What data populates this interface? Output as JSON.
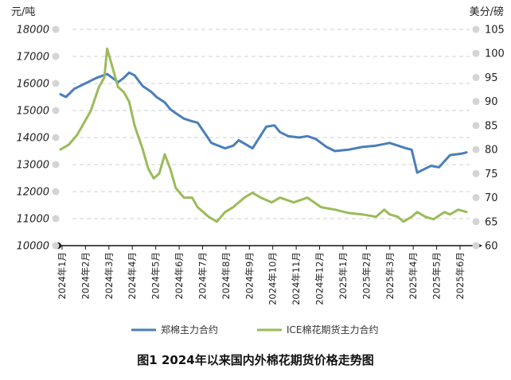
{
  "chart_data": {
    "type": "line",
    "title": "",
    "left_axis": {
      "unit_label": "元/吨",
      "range": [
        10000,
        18000
      ],
      "ticks": [
        "10000",
        "11000",
        "12000",
        "13000",
        "14000",
        "15000",
        "16000",
        "17000",
        "18000"
      ]
    },
    "right_axis": {
      "unit_label": "美分/磅",
      "range": [
        60,
        105
      ],
      "ticks": [
        "60",
        "65",
        "70",
        "75",
        "80",
        "85",
        "90",
        "95",
        "100",
        "105"
      ]
    },
    "x_ticks": [
      "2024年1月",
      "2024年2月",
      "2024年3月",
      "2024年4月",
      "2024年5月",
      "2024年6月",
      "2024年7月",
      "2024年8月",
      "2024年9月",
      "2024年10月",
      "2024年11月",
      "2024年12月",
      "2025年1月",
      "2025年2月",
      "2025年3月",
      "2025年4月",
      "2025年5月",
      "2025年6月"
    ],
    "grid": "horizontal dashed",
    "legend_position": "bottom",
    "series": [
      {
        "name": "郑棉主力合约",
        "axis": "left",
        "color": "#4a7ebb",
        "x": [
          2024.0,
          2024.02,
          2024.05,
          2024.08,
          2024.1,
          2024.13,
          2024.17,
          2024.21,
          2024.23,
          2024.25,
          2024.27,
          2024.3,
          2024.33,
          2024.35,
          2024.38,
          2024.4,
          2024.42,
          2024.45,
          2024.48,
          2024.5,
          2024.55,
          2024.6,
          2024.63,
          2024.65,
          2024.7,
          2024.75,
          2024.78,
          2024.8,
          2024.83,
          2024.87,
          2024.9,
          2024.93,
          2024.97,
          2025.0,
          2025.05,
          2025.1,
          2025.15,
          2025.2,
          2025.23,
          2025.26,
          2025.28,
          2025.3,
          2025.35,
          2025.38,
          2025.42,
          2025.46,
          2025.48
        ],
        "y": [
          15600,
          15500,
          15800,
          15950,
          16050,
          16200,
          16350,
          16050,
          16200,
          16400,
          16300,
          15900,
          15700,
          15500,
          15300,
          15050,
          14900,
          14700,
          14600,
          14550,
          13800,
          13600,
          13700,
          13900,
          13600,
          14400,
          14450,
          14200,
          14050,
          14000,
          14050,
          13950,
          13650,
          13500,
          13550,
          13650,
          13700,
          13800,
          13700,
          13600,
          13550,
          12700,
          12950,
          12900,
          13350,
          13400,
          13450
        ]
      },
      {
        "name": "ICE棉花期货主力合约",
        "axis": "right",
        "color": "#9bbb59",
        "x": [
          2024.0,
          2024.03,
          2024.06,
          2024.08,
          2024.11,
          2024.14,
          2024.16,
          2024.17,
          2024.19,
          2024.21,
          2024.23,
          2024.25,
          2024.27,
          2024.3,
          2024.32,
          2024.34,
          2024.36,
          2024.38,
          2024.4,
          2024.42,
          2024.45,
          2024.48,
          2024.5,
          2024.54,
          2024.57,
          2024.6,
          2024.63,
          2024.67,
          2024.7,
          2024.73,
          2024.77,
          2024.8,
          2024.85,
          2024.9,
          2024.95,
          2025.0,
          2025.05,
          2025.1,
          2025.15,
          2025.18,
          2025.2,
          2025.23,
          2025.25,
          2025.28,
          2025.3,
          2025.33,
          2025.36,
          2025.4,
          2025.42,
          2025.45,
          2025.48
        ],
        "y": [
          80,
          81,
          83,
          85,
          88,
          93,
          95,
          101,
          97,
          93,
          92,
          90,
          85,
          80,
          76,
          74,
          75,
          79,
          76,
          72,
          70,
          70,
          68,
          66,
          65,
          67,
          68,
          70,
          71,
          70,
          69,
          70,
          69,
          70,
          68,
          67.5,
          66.8,
          66.5,
          66,
          67.5,
          66.5,
          66,
          65,
          66,
          67,
          66,
          65.5,
          67,
          66.5,
          67.5,
          67
        ]
      }
    ],
    "caption": "图1 2024年以来国内外棉花期货价格走势图"
  }
}
